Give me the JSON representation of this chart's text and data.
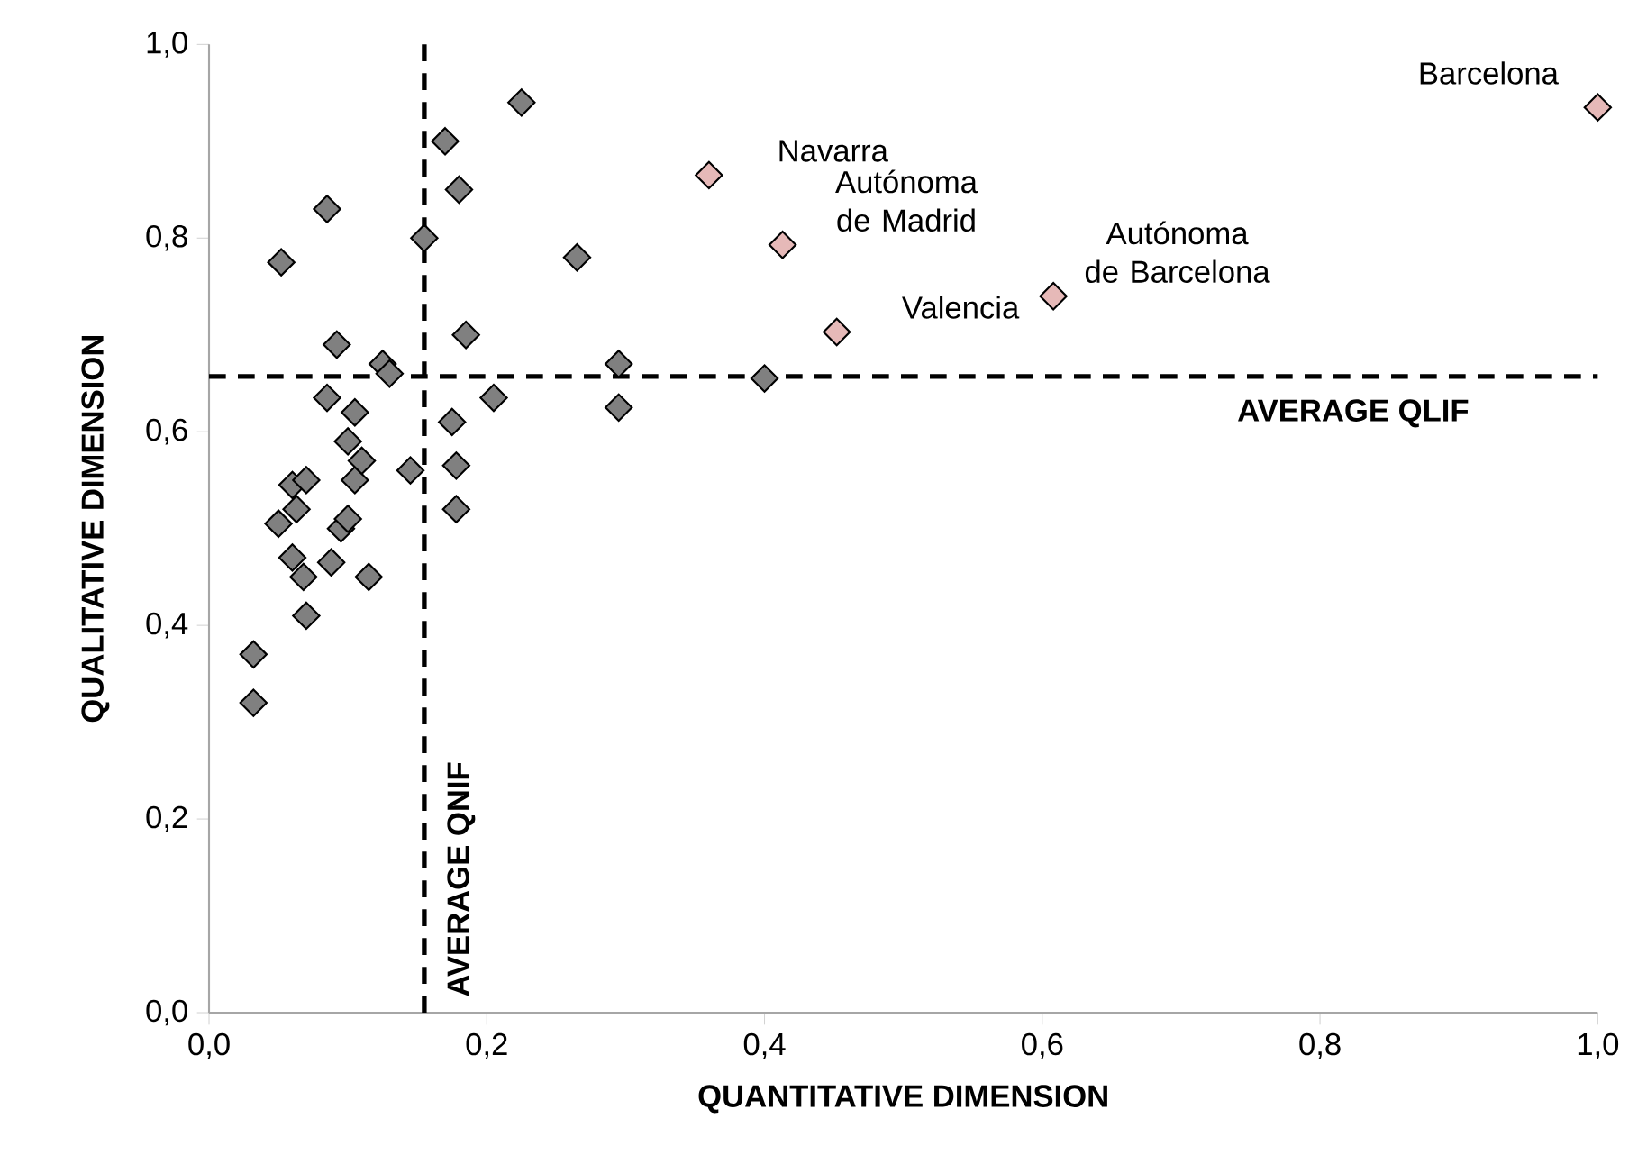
{
  "chart_data": {
    "type": "scatter",
    "xlabel": "QUANTITATIVE DIMENSION",
    "ylabel": "QUALITATIVE DIMENSION",
    "marker": "diamond",
    "xlim": [
      0,
      1
    ],
    "ylim": [
      0,
      1
    ],
    "xticks": [
      {
        "value": 0,
        "label": "0,0"
      },
      {
        "value": 0.2,
        "label": "0,2"
      },
      {
        "value": 0.4,
        "label": "0,4"
      },
      {
        "value": 0.6,
        "label": "0,6"
      },
      {
        "value": 0.8,
        "label": "0,8"
      },
      {
        "value": 1,
        "label": "1,0"
      }
    ],
    "yticks": [
      {
        "value": 0,
        "label": "0,0"
      },
      {
        "value": 0.2,
        "label": "0,2"
      },
      {
        "value": 0.4,
        "label": "0,4"
      },
      {
        "value": 0.6,
        "label": "0,6"
      },
      {
        "value": 0.8,
        "label": "0,8"
      },
      {
        "value": 1,
        "label": "1,0"
      }
    ],
    "series": [
      {
        "color": "#808080",
        "x": [
          0.032,
          0.032,
          0.05,
          0.06,
          0.063,
          0.07,
          0.06,
          0.068,
          0.07,
          0.088,
          0.095,
          0.1,
          0.105,
          0.11,
          0.1,
          0.105,
          0.085,
          0.115,
          0.092,
          0.125,
          0.13,
          0.145,
          0.175,
          0.178,
          0.178,
          0.205,
          0.185,
          0.155,
          0.17,
          0.18,
          0.225,
          0.085,
          0.052,
          0.265,
          0.295,
          0.295,
          0.4
        ],
        "values": [
          0.37,
          0.32,
          0.505,
          0.545,
          0.52,
          0.55,
          0.47,
          0.45,
          0.41,
          0.465,
          0.5,
          0.51,
          0.55,
          0.57,
          0.59,
          0.62,
          0.635,
          0.45,
          0.69,
          0.67,
          0.66,
          0.56,
          0.61,
          0.565,
          0.52,
          0.635,
          0.7,
          0.8,
          0.9,
          0.85,
          0.94,
          0.83,
          0.775,
          0.78,
          0.67,
          0.625,
          0.655
        ]
      },
      {
        "color": "#e6b9b8",
        "x": [
          0.36,
          0.413,
          0.452,
          0.608,
          1.0
        ],
        "values": [
          0.865,
          0.793,
          0.703,
          0.74,
          0.935
        ]
      }
    ],
    "ref_lines": [
      {
        "axis": "x",
        "value": 0.155,
        "label": "AVERAGE QNIF",
        "line_style": "dashed"
      },
      {
        "axis": "y",
        "value": 0.657,
        "label": "AVERAGE QLIF",
        "line_style": "dashed"
      }
    ],
    "annotations": [
      {
        "text": "Navarra",
        "x": 0.36,
        "y": 0.865
      },
      {
        "text": "Autónoma de Madrid",
        "x": 0.413,
        "y": 0.793
      },
      {
        "text": "Valencia",
        "x": 0.452,
        "y": 0.703
      },
      {
        "text": "Autónoma de Barcelona",
        "x": 0.608,
        "y": 0.74
      },
      {
        "text": "Barcelona",
        "x": 1.0,
        "y": 0.935
      }
    ]
  }
}
